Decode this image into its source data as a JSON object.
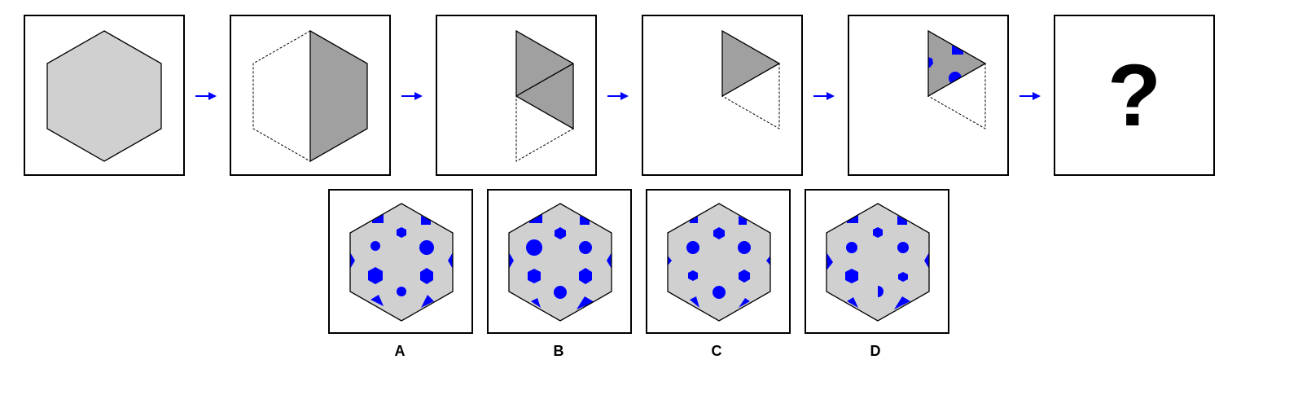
{
  "puzzle": {
    "question_mark": "?",
    "colors": {
      "fill": "#d0d0d0",
      "folded": "#a0a0a0",
      "marks": "#0000ff",
      "arrow": "#0000ff",
      "stroke": "#000000"
    },
    "steps": [
      "full-hexagon",
      "fold-left-half",
      "fold-bottom-third",
      "fold-bottom-again",
      "cut-shapes",
      "unknown-result"
    ]
  },
  "options": [
    {
      "label": "A"
    },
    {
      "label": "B"
    },
    {
      "label": "C"
    },
    {
      "label": "D"
    }
  ]
}
